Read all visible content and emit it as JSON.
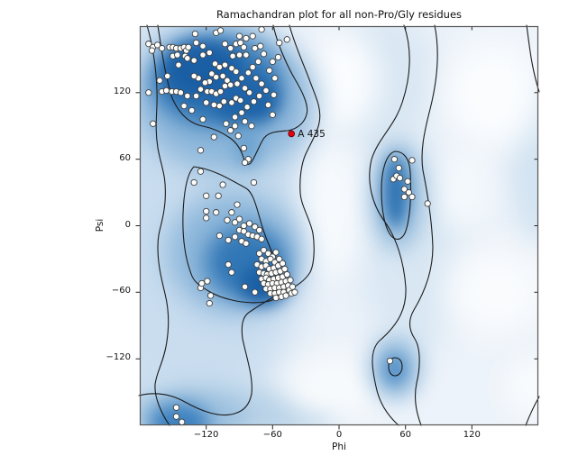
{
  "chart_data": {
    "type": "scatter",
    "title": "Ramachandran plot for all non-Pro/Gly residues",
    "xlabel": "Phi",
    "ylabel": "Psi",
    "xlim": [
      -180,
      180
    ],
    "ylim": [
      -180,
      180
    ],
    "grid": false,
    "legend": "none",
    "style": {
      "background": "#edf3fa",
      "contour_color": "#1c1c1c",
      "frame_color": "#555555",
      "tick_color": "#222222",
      "marker_fill": "#fdfdfc",
      "marker_edge": "#3f3f3f",
      "density_dark": "#1a5ea4",
      "density_mid": "#8cb6da",
      "density_light": "#c9ddef"
    },
    "axes": {
      "x": {
        "ticks": [
          {
            "value": -120,
            "label": "−120"
          },
          {
            "value": -60,
            "label": "−60"
          },
          {
            "value": 0,
            "label": "0"
          },
          {
            "value": 60,
            "label": "60"
          },
          {
            "value": 120,
            "label": "120"
          }
        ]
      },
      "y": {
        "ticks": [
          {
            "value": 120,
            "label": "120"
          },
          {
            "value": 60,
            "label": "60"
          },
          {
            "value": 0,
            "label": "0"
          },
          {
            "value": -60,
            "label": "−60"
          },
          {
            "value": -120,
            "label": "−120"
          }
        ]
      }
    },
    "highlighted_point": {
      "label": "A 435",
      "phi": -43,
      "psi": 83,
      "color": "#e8000b",
      "edge_color": "#5a0000"
    },
    "points": [
      [
        -172,
        164
      ],
      [
        -168,
        161
      ],
      [
        -164,
        163
      ],
      [
        -169,
        158
      ],
      [
        -160,
        160
      ],
      [
        -153,
        161
      ],
      [
        -150,
        161
      ],
      [
        -147,
        160
      ],
      [
        -143,
        160
      ],
      [
        -140,
        161
      ],
      [
        -138,
        158
      ],
      [
        -136,
        161
      ],
      [
        -130,
        173
      ],
      [
        -129,
        165
      ],
      [
        -123,
        162
      ],
      [
        -150,
        153
      ],
      [
        -146,
        154
      ],
      [
        -139,
        153
      ],
      [
        -137,
        151
      ],
      [
        -131,
        149
      ],
      [
        -145,
        145
      ],
      [
        -123,
        154
      ],
      [
        -117,
        156
      ],
      [
        -111,
        174
      ],
      [
        -107,
        176
      ],
      [
        -103,
        164
      ],
      [
        -98,
        160
      ],
      [
        -93,
        164
      ],
      [
        -89,
        165
      ],
      [
        -86,
        161
      ],
      [
        -84,
        154
      ],
      [
        -90,
        154
      ],
      [
        -96,
        153
      ],
      [
        -112,
        146
      ],
      [
        -108,
        143
      ],
      [
        -103,
        145
      ],
      [
        -97,
        142
      ],
      [
        -93,
        139
      ],
      [
        -115,
        137
      ],
      [
        -111,
        134
      ],
      [
        -105,
        135
      ],
      [
        -101,
        131
      ],
      [
        -117,
        130
      ],
      [
        -121,
        129
      ],
      [
        -127,
        133
      ],
      [
        -131,
        135
      ],
      [
        -125,
        123
      ],
      [
        -119,
        121
      ],
      [
        -115,
        121
      ],
      [
        -111,
        119
      ],
      [
        -107,
        121
      ],
      [
        -103,
        126
      ],
      [
        -98,
        127
      ],
      [
        -160,
        121
      ],
      [
        -156,
        122
      ],
      [
        -151,
        121
      ],
      [
        -147,
        121
      ],
      [
        -143,
        120
      ],
      [
        -137,
        117
      ],
      [
        -129,
        117
      ],
      [
        -93,
        115
      ],
      [
        -89,
        113
      ],
      [
        -97,
        111
      ],
      [
        -104,
        112
      ],
      [
        -108,
        108
      ],
      [
        -113,
        109
      ],
      [
        -123,
        96
      ],
      [
        -168,
        92
      ],
      [
        -78,
        171
      ],
      [
        -70,
        177
      ],
      [
        -54,
        165
      ],
      [
        -47,
        168
      ],
      [
        -90,
        171
      ],
      [
        -84,
        169
      ],
      [
        -76,
        160
      ],
      [
        -71,
        162
      ],
      [
        -68,
        155
      ],
      [
        -73,
        148
      ],
      [
        -78,
        143
      ],
      [
        -82,
        138
      ],
      [
        -75,
        133
      ],
      [
        -70,
        128
      ],
      [
        -66,
        122
      ],
      [
        -72,
        117
      ],
      [
        -77,
        112
      ],
      [
        -83,
        107
      ],
      [
        -88,
        102
      ],
      [
        -94,
        98
      ],
      [
        -85,
        94
      ],
      [
        -79,
        90
      ],
      [
        -113,
        80
      ],
      [
        -94,
        90
      ],
      [
        -86,
        70
      ],
      [
        -82,
        60
      ],
      [
        -125,
        68
      ],
      [
        -63,
        140
      ],
      [
        -60,
        148
      ],
      [
        -58,
        133
      ],
      [
        -64,
        109
      ],
      [
        -59,
        118
      ],
      [
        -98,
        86
      ],
      [
        -91,
        81
      ],
      [
        -102,
        92
      ],
      [
        -85,
        124
      ],
      [
        -81,
        120
      ],
      [
        -92,
        128
      ],
      [
        -88,
        133
      ],
      [
        -120,
        111
      ],
      [
        -133,
        104
      ],
      [
        -140,
        108
      ],
      [
        -155,
        135
      ],
      [
        -162,
        131
      ],
      [
        -172,
        120
      ],
      [
        -60,
        100
      ],
      [
        -55,
        152
      ],
      [
        -125,
        49
      ],
      [
        -131,
        39
      ],
      [
        -105,
        37
      ],
      [
        -77,
        39
      ],
      [
        -120,
        27
      ],
      [
        -109,
        27
      ],
      [
        -92,
        19
      ],
      [
        -120,
        13
      ],
      [
        -111,
        12
      ],
      [
        -97,
        12
      ],
      [
        -120,
        7
      ],
      [
        -101,
        5
      ],
      [
        -94,
        3
      ],
      [
        -90,
        6
      ],
      [
        -86,
        0
      ],
      [
        -81,
        2
      ],
      [
        -76,
        -1
      ],
      [
        -72,
        -4
      ],
      [
        -108,
        -9
      ],
      [
        -100,
        -13
      ],
      [
        -94,
        -10
      ],
      [
        -90,
        -4
      ],
      [
        -86,
        -5
      ],
      [
        -82,
        -8
      ],
      [
        -78,
        -9
      ],
      [
        -74,
        -10
      ],
      [
        -70,
        -12
      ],
      [
        -88,
        -14
      ],
      [
        -84,
        -16
      ],
      [
        -100,
        -35
      ],
      [
        -97,
        -42
      ],
      [
        -119,
        -50
      ],
      [
        -125,
        -56
      ],
      [
        -116,
        -63
      ],
      [
        -117,
        -70
      ],
      [
        -85,
        -55
      ],
      [
        -76,
        -60
      ],
      [
        -124,
        -52
      ],
      [
        -85,
        57
      ],
      [
        -72,
        -25
      ],
      [
        -68,
        -22
      ],
      [
        -64,
        -25
      ],
      [
        -60,
        -28
      ],
      [
        -57,
        -24
      ],
      [
        -70,
        -30
      ],
      [
        -66,
        -32
      ],
      [
        -62,
        -30
      ],
      [
        -58,
        -33
      ],
      [
        -54,
        -30
      ],
      [
        -74,
        -35
      ],
      [
        -70,
        -37
      ],
      [
        -66,
        -36
      ],
      [
        -63,
        -39
      ],
      [
        -59,
        -38
      ],
      [
        -55,
        -36
      ],
      [
        -51,
        -34
      ],
      [
        -72,
        -42
      ],
      [
        -68,
        -43
      ],
      [
        -65,
        -44
      ],
      [
        -61,
        -43
      ],
      [
        -57,
        -42
      ],
      [
        -53,
        -41
      ],
      [
        -49,
        -39
      ],
      [
        -70,
        -48
      ],
      [
        -66,
        -47
      ],
      [
        -63,
        -49
      ],
      [
        -59,
        -48
      ],
      [
        -55,
        -47
      ],
      [
        -51,
        -46
      ],
      [
        -47,
        -44
      ],
      [
        -68,
        -52
      ],
      [
        -64,
        -53
      ],
      [
        -60,
        -52
      ],
      [
        -56,
        -52
      ],
      [
        -52,
        -51
      ],
      [
        -48,
        -50
      ],
      [
        -66,
        -57
      ],
      [
        -62,
        -57
      ],
      [
        -58,
        -56
      ],
      [
        -54,
        -56
      ],
      [
        -50,
        -55
      ],
      [
        -46,
        -54
      ],
      [
        -62,
        -61
      ],
      [
        -58,
        -61
      ],
      [
        -54,
        -60
      ],
      [
        -50,
        -60
      ],
      [
        -45,
        -58
      ],
      [
        -57,
        -65
      ],
      [
        -52,
        -64
      ],
      [
        -48,
        -63
      ],
      [
        -43,
        -61
      ],
      [
        -44,
        -49
      ],
      [
        -42,
        -55
      ],
      [
        -40,
        -60
      ],
      [
        50,
        60
      ],
      [
        66,
        59
      ],
      [
        54,
        52
      ],
      [
        49,
        42
      ],
      [
        52,
        45
      ],
      [
        55,
        43
      ],
      [
        62,
        40
      ],
      [
        59,
        33
      ],
      [
        63,
        30
      ],
      [
        59,
        26
      ],
      [
        66,
        26
      ],
      [
        80,
        20
      ],
      [
        46,
        -122
      ],
      [
        -147,
        -164
      ],
      [
        -147,
        -172
      ],
      [
        -142,
        -177
      ]
    ],
    "contours": [
      "M 20,-1 C 24,25 28,55 36,80 C 44,98 55,108 70,111 C 80,113 90,117 100,124 C 107,129 112,136 115,146 C 117,153 120,155 123,152 C 127,147 130,138 136,127 C 141,117 152,117 164,116 C 176,114 183,106 185,98 C 188,88 180,72 171,57 C 162,41 152,18 148,-1",
      "M 8,-1 C 14,20 18,45 19,70 C 20,95 16,110 20,135 C 24,158 30,165 28,195 C 26,220 20,225 20,245 C 20,265 24,280 28,297 C 32,313 33,330 30,350 C 27,372 18,385 17,398 C 16,412 24,430 33,443",
      "M -1,410 C 15,406 32,407 50,417 C 68,427 88,435 105,430 C 116,427 122,419 124,408 C 126,390 119,370 114,347 C 112,332 114,322 122,317 C 131,311 144,302 160,295 C 172,290 183,283 189,273 C 194,263 194,243 192,230 C 189,214 179,200 178,185 C 177,170 179,153 184,142 C 190,129 197,118 199,107 C 202,93 196,80 189,62 C 183,45 172,22 166,-1",
      "M 60,156 C 80,158 100,170 118,180 C 128,186 131,210 139,232 C 147,254 157,271 159,287 C 160,297 153,304 139,306 C 119,309 94,304 78,295 C 66,288 60,284 57,275 C 51,259 47,238 48,208 C 49,184 52,164 60,156 Z",
      "M 293,-1 C 302,25 301,55 291,85 C 282,112 264,125 257,148 C 251,173 258,198 271,216 C 285,235 293,262 295,290 C 296,312 288,330 266,349 C 254,360 258,382 262,400 C 266,420 277,434 287,443",
      "M 327,-1 C 333,28 330,60 322,92 C 315,119 311,140 314,160 C 319,185 324,215 325,245 C 325,272 316,295 304,315 C 297,327 299,338 305,347 C 312,358 311,380 307,396 C 303,416 308,432 312,443",
      "M 283,139 C 293,139 299,147 300,162 C 301,183 301,205 296,224 C 293,236 286,240 279,233 C 272,225 268,205 268,182 C 268,160 273,142 283,139 Z",
      "M 283,368 C 288,368 291,372 291,378 C 291,384 287,388 283,388 C 279,388 276,384 276,378 C 276,372 278,368 283,368 Z",
      "M 429,-1 C 432,20 434,45 443,73",
      "M 428,443 C 433,430 438,420 443,411"
    ],
    "density_blobs": [
      {
        "x": 60,
        "y": 210,
        "rx": 130,
        "ry": 240,
        "color": "#c9ddef",
        "blur": 22
      },
      {
        "x": 270,
        "y": 60,
        "rx": 60,
        "ry": 80,
        "color": "#d9e7f3",
        "blur": 18
      },
      {
        "x": 300,
        "y": 250,
        "rx": 55,
        "ry": 120,
        "color": "#d9e7f3",
        "blur": 18
      },
      {
        "x": 90,
        "y": 430,
        "rx": 130,
        "ry": 30,
        "color": "#b9d3e8",
        "blur": 12
      },
      {
        "x": 440,
        "y": 150,
        "rx": 30,
        "ry": 90,
        "color": "#d2e3f1",
        "blur": 14
      },
      {
        "x": 225,
        "y": 60,
        "rx": 40,
        "ry": 55,
        "color": "#fafcfe",
        "blur": 16
      },
      {
        "x": 212,
        "y": 205,
        "rx": 32,
        "ry": 75,
        "color": "#f6fafd",
        "blur": 16
      },
      {
        "x": 392,
        "y": 75,
        "rx": 55,
        "ry": 60,
        "color": "#fafcfe",
        "blur": 18
      },
      {
        "x": 395,
        "y": 295,
        "rx": 55,
        "ry": 50,
        "color": "#f9fbfd",
        "blur": 18
      },
      {
        "x": 215,
        "y": 400,
        "rx": 55,
        "ry": 35,
        "color": "#f7fafc",
        "blur": 16
      },
      {
        "x": 438,
        "y": 400,
        "rx": 35,
        "ry": 35,
        "color": "#f8fbfd",
        "blur": 14
      },
      {
        "x": 360,
        "y": 180,
        "rx": 28,
        "ry": 45,
        "color": "#f3f8fc",
        "blur": 14
      },
      {
        "x": 95,
        "y": 82,
        "rx": 100,
        "ry": 80,
        "color": "#8cb6da",
        "blur": 16
      },
      {
        "x": 85,
        "y": 62,
        "rx": 72,
        "ry": 50,
        "color": "#3277b6",
        "blur": 12
      },
      {
        "x": 70,
        "y": 50,
        "rx": 45,
        "ry": 32,
        "color": "#1a5ea4",
        "blur": 9
      },
      {
        "x": 118,
        "y": 82,
        "rx": 38,
        "ry": 28,
        "color": "#1f64a9",
        "blur": 9
      },
      {
        "x": 119,
        "y": 133,
        "rx": 14,
        "ry": 24,
        "color": "#6ba2cf",
        "blur": 9
      },
      {
        "x": 105,
        "y": 252,
        "rx": 75,
        "ry": 68,
        "color": "#8cb6da",
        "blur": 16
      },
      {
        "x": 118,
        "y": 262,
        "rx": 45,
        "ry": 40,
        "color": "#3277b6",
        "blur": 12
      },
      {
        "x": 137,
        "y": 287,
        "rx": 26,
        "ry": 22,
        "color": "#1a5ea4",
        "blur": 9
      },
      {
        "x": 286,
        "y": 188,
        "rx": 30,
        "ry": 62,
        "color": "#9cc0de",
        "blur": 12
      },
      {
        "x": 284,
        "y": 184,
        "rx": 14,
        "ry": 40,
        "color": "#2f74b3",
        "blur": 8
      },
      {
        "x": 283,
        "y": 380,
        "rx": 28,
        "ry": 34,
        "color": "#8cb6da",
        "blur": 12
      },
      {
        "x": 283,
        "y": 381,
        "rx": 12,
        "ry": 16,
        "color": "#5b95c9",
        "blur": 7
      },
      {
        "x": 60,
        "y": 432,
        "rx": 60,
        "ry": 26,
        "color": "#9cc0de",
        "blur": 12
      },
      {
        "x": 44,
        "y": 440,
        "rx": 34,
        "ry": 22,
        "color": "#3c81bf",
        "blur": 10
      }
    ]
  }
}
